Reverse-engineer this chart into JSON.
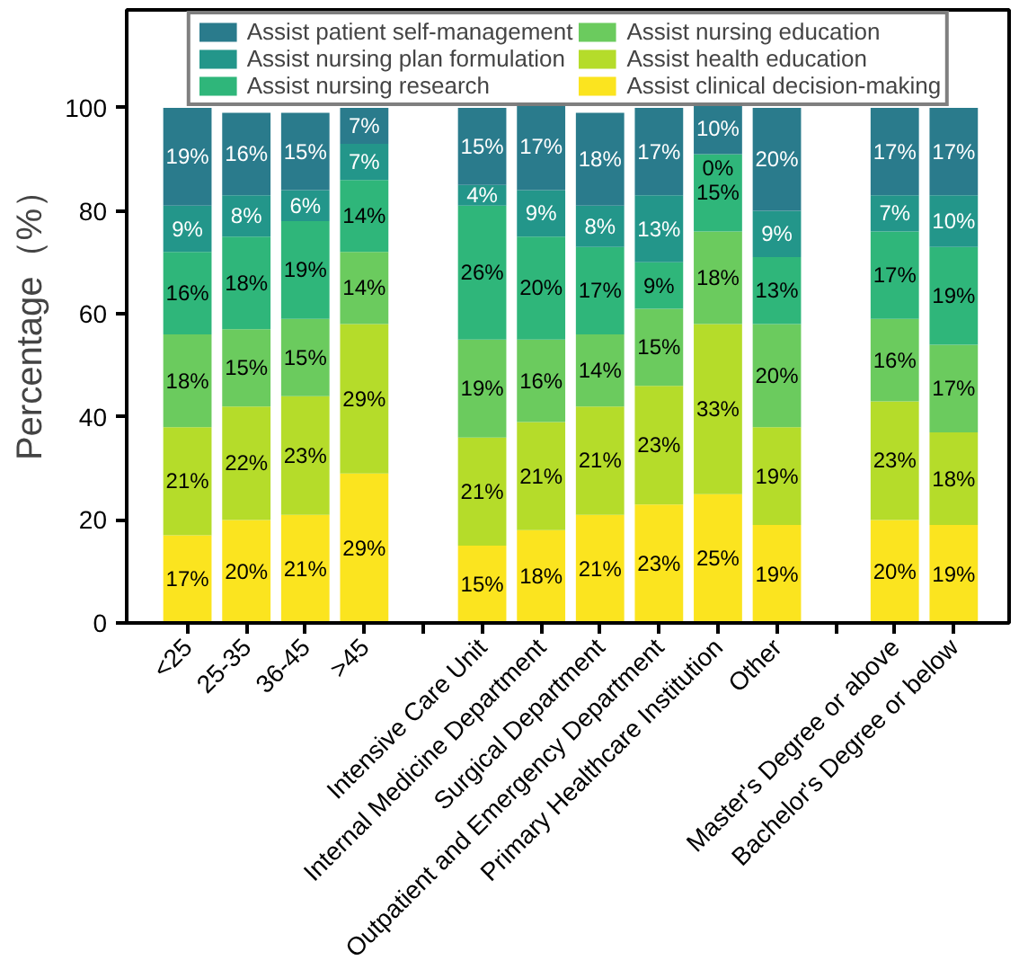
{
  "chart_data": {
    "type": "bar",
    "stacked": true,
    "ylabel": "Percentage（%）",
    "ylim": [
      0,
      119
    ],
    "yticks": [
      0,
      20,
      40,
      60,
      80,
      100
    ],
    "legend": "top",
    "grid": false,
    "categories": [
      "<25",
      "25-35",
      "36-45",
      ">45",
      null,
      "Intensive Care Unit",
      "Internal Medicine Department",
      "Surgical Department",
      "Outpatient and Emergency Department",
      "Primary Healthcare Institution",
      "Other",
      null,
      "Master's Degree or above",
      "Bachelor's Degree or below"
    ],
    "series": [
      {
        "name": "Assist clinical decision-making",
        "color": "#fbe41f",
        "values": [
          17,
          20,
          21,
          29,
          null,
          15,
          18,
          21,
          23,
          25,
          19,
          null,
          20,
          19
        ],
        "value_labels": [
          "17%",
          "20%",
          "21%",
          "29%",
          null,
          "15%",
          "18%",
          "21%",
          "23%",
          "25%",
          "19%",
          null,
          "20%",
          "19%"
        ]
      },
      {
        "name": "Assist health education",
        "color": "#b5dc2a",
        "values": [
          21,
          22,
          23,
          29,
          null,
          21,
          21,
          21,
          23,
          33,
          19,
          null,
          23,
          18
        ],
        "value_labels": [
          "21%",
          "22%",
          "23%",
          "29%",
          null,
          "21%",
          "21%",
          "21%",
          "23%",
          "33%",
          "19%",
          null,
          "23%",
          "18%"
        ]
      },
      {
        "name": "Assist nursing education",
        "color": "#6bcb5e",
        "values": [
          18,
          15,
          15,
          14,
          null,
          19,
          16,
          14,
          15,
          18,
          20,
          null,
          16,
          17
        ],
        "value_labels": [
          "18%",
          "15%",
          "15%",
          "14%",
          null,
          "19%",
          "16%",
          "14%",
          "15%",
          "18%",
          "20%",
          null,
          "16%",
          "17%"
        ]
      },
      {
        "name": "Assist nursing research",
        "color": "#2fb67a",
        "values": [
          16,
          18,
          19,
          14,
          null,
          26,
          20,
          17,
          9,
          15,
          13,
          null,
          17,
          19
        ],
        "value_labels": [
          "16%",
          "18%",
          "19%",
          "14%",
          null,
          "26%",
          "20%",
          "17%",
          "9%",
          "15%",
          "13%",
          null,
          "17%",
          "19%"
        ]
      },
      {
        "name": "Assist nursing plan formulation",
        "color": "#23968a",
        "values": [
          9,
          8,
          6,
          7,
          null,
          4,
          9,
          8,
          13,
          0,
          9,
          null,
          7,
          10
        ],
        "value_labels": [
          "9%",
          "8%",
          "6%",
          "7%",
          null,
          "4%",
          "9%",
          "8%",
          "13%",
          "0%",
          "9%",
          null,
          "7%",
          "10%"
        ]
      },
      {
        "name": "Assist patient self-management",
        "color": "#2a7b8c",
        "values": [
          19,
          16,
          15,
          7,
          null,
          15,
          17,
          18,
          17,
          10,
          20,
          null,
          17,
          17
        ],
        "value_labels": [
          "19%",
          "16%",
          "15%",
          "7%",
          null,
          "15%",
          "17%",
          "18%",
          "17%",
          "10%",
          "20%",
          null,
          "17%",
          "17%"
        ]
      }
    ]
  }
}
